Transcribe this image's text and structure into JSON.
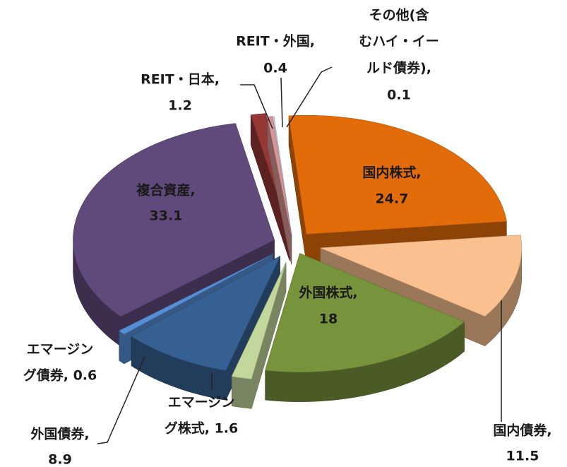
{
  "chart_data": {
    "type": "pie3d",
    "values": [
      0.1,
      24.7,
      11.5,
      18,
      1.6,
      8.9,
      0.6,
      33.1,
      1.2,
      0.4
    ],
    "value_labels": [
      [
        "その他(含",
        "むハイ・イー",
        "ルド債券),",
        "0.1"
      ],
      [
        "国内株式,",
        "24.7"
      ],
      [
        "国内債券,",
        "11.5"
      ],
      [
        "外国株式,",
        "18"
      ],
      [
        "エマージン",
        "グ株式, 1.6"
      ],
      [
        "外国債券,",
        "8.9"
      ],
      [
        "エマージン",
        "グ債券, 0.6"
      ],
      [
        "複合資産,",
        "33.1"
      ],
      [
        "REIT・日本,",
        "1.2"
      ],
      [
        "REIT・外国,",
        "0.4"
      ]
    ],
    "colors": [
      "#b9cde5",
      "#e36c0a",
      "#fac090",
      "#77933c",
      "#c3d69b",
      "#376092",
      "#558ed5",
      "#604a7b",
      "#953735",
      "#d99694"
    ]
  }
}
